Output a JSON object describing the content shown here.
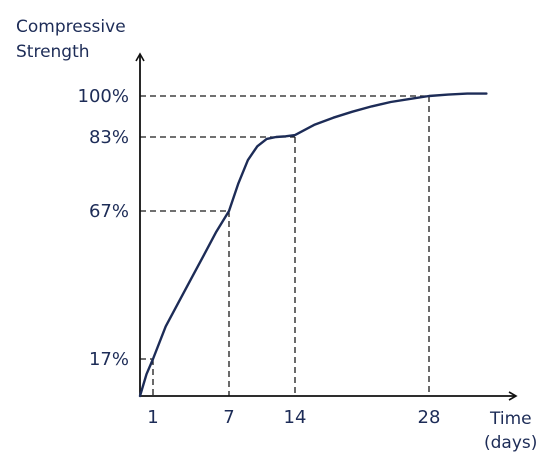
{
  "chart_data": {
    "type": "line",
    "ylabel_lines": [
      "Compressive",
      "Strength"
    ],
    "xlabel_lines": [
      "Time",
      "(days)"
    ],
    "x_ticks": [
      {
        "value": 1,
        "label": "1"
      },
      {
        "value": 7,
        "label": "7"
      },
      {
        "value": 14,
        "label": "14"
      },
      {
        "value": 28,
        "label": "28"
      }
    ],
    "y_ticks": [
      {
        "value": 17,
        "label": "17%"
      },
      {
        "value": 67,
        "label": "67%"
      },
      {
        "value": 83,
        "label": "83%"
      },
      {
        "value": 100,
        "label": "100%"
      }
    ],
    "xlim": [
      0,
      35
    ],
    "ylim": [
      0,
      105
    ],
    "series": [
      {
        "x": [
          0,
          0.5,
          1,
          2,
          3,
          4,
          5,
          6,
          7,
          8,
          9,
          10,
          11,
          12,
          13,
          14,
          16,
          18,
          20,
          22,
          24,
          26,
          28,
          30,
          32,
          34
        ],
        "y": [
          0,
          10,
          17,
          28,
          36,
          44,
          52,
          60,
          67,
          73,
          78,
          81,
          82.6,
          83,
          83.3,
          83.8,
          88,
          91,
          93.5,
          95.7,
          97.5,
          98.8,
          100,
          100.6,
          101.0,
          101.0
        ]
      }
    ],
    "grid": false,
    "legend": "none",
    "colors": {
      "line": "#1d2c57",
      "guides": "#1a1a1a",
      "axis": "#111111",
      "text": "#1d2c57"
    }
  }
}
